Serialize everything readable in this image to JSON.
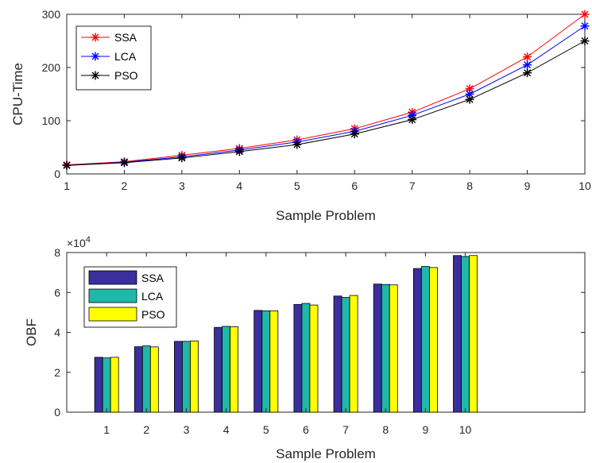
{
  "chart_data": [
    {
      "type": "line",
      "xlabel": "Sample Problem",
      "ylabel": "CPU-Time",
      "xlim": [
        1,
        10
      ],
      "ylim": [
        0,
        300
      ],
      "x_ticks": [
        "1",
        "2",
        "3",
        "4",
        "5",
        "6",
        "7",
        "8",
        "9",
        "10"
      ],
      "y_ticks": [
        "0",
        "100",
        "200",
        "300"
      ],
      "grid": false,
      "legend_placement": "top-left",
      "x": [
        1,
        2,
        3,
        4,
        5,
        6,
        7,
        8,
        9,
        10
      ],
      "series": [
        {
          "name": "SSA",
          "color": "#ff0000",
          "marker": "asterisk",
          "values": [
            17,
            23,
            35,
            48,
            64,
            85,
            116,
            160,
            220,
            300
          ]
        },
        {
          "name": "LCA",
          "color": "#0000ff",
          "marker": "asterisk",
          "values": [
            16,
            22,
            32,
            45,
            60,
            80,
            110,
            150,
            205,
            278
          ]
        },
        {
          "name": "PSO",
          "color": "#000000",
          "marker": "asterisk",
          "values": [
            16,
            21,
            30,
            42,
            55,
            75,
            102,
            140,
            190,
            250
          ]
        }
      ]
    },
    {
      "type": "bar",
      "xlabel": "Sample Problem",
      "ylabel": "OBF",
      "xlim": [
        0,
        13
      ],
      "ylim": [
        0,
        8
      ],
      "y_multiplier": "10",
      "y_multiplier_exponent": "4",
      "y_multiplier_sign": "×",
      "categories": [
        "1",
        "2",
        "3",
        "4",
        "5",
        "6",
        "7",
        "8",
        "9",
        "10"
      ],
      "y_ticks": [
        "0",
        "2",
        "4",
        "6",
        "8"
      ],
      "grid": false,
      "legend_placement": "top-left",
      "series": [
        {
          "name": "SSA",
          "color": "#3a2f9c",
          "values": [
            2.75,
            3.28,
            3.55,
            4.25,
            5.1,
            5.4,
            5.82,
            6.42,
            7.2,
            7.85
          ]
        },
        {
          "name": "LCA",
          "color": "#20b8a8",
          "values": [
            2.72,
            3.32,
            3.55,
            4.3,
            5.08,
            5.45,
            5.75,
            6.4,
            7.3,
            7.8
          ]
        },
        {
          "name": "PSO",
          "color": "#ffff00",
          "values": [
            2.75,
            3.27,
            3.57,
            4.28,
            5.08,
            5.37,
            5.85,
            6.38,
            7.25,
            7.85
          ]
        }
      ]
    }
  ]
}
